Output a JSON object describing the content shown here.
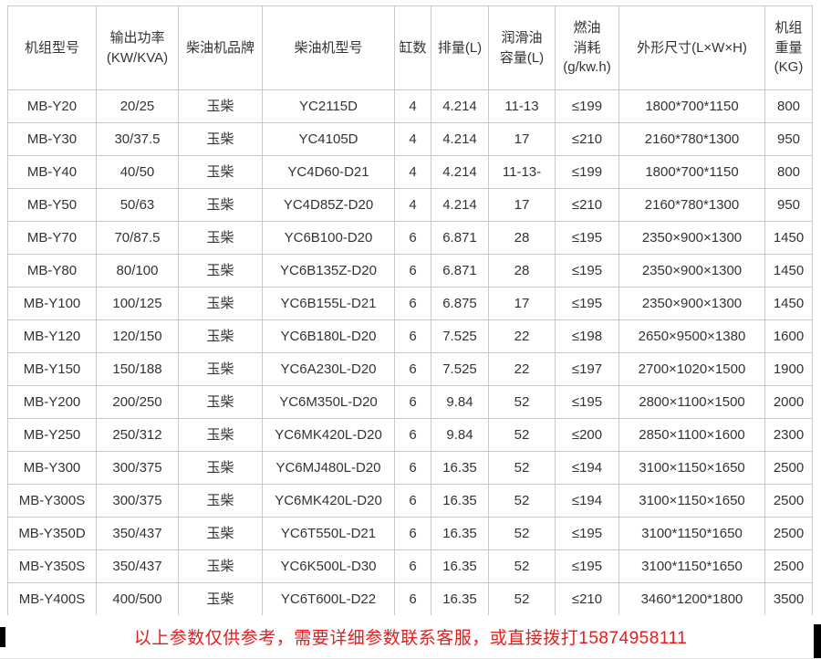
{
  "colors": {
    "border": "#c9c9c9",
    "cell_text": "#333333",
    "notice_red": "#e81c1c",
    "background": "#ffffff"
  },
  "table": {
    "headers": [
      "机组型号",
      "输出功率\n(KW/KVA)",
      "柴油机品牌",
      "柴油机型号",
      "缸数",
      "排量(L)",
      "润滑油\n容量(L)",
      "燃油\n消耗\n(g/kw.h)",
      "外形尺寸(L×W×H)",
      "机组\n重量\n(KG)"
    ],
    "rows": [
      [
        "MB-Y20",
        "20/25",
        "玉柴",
        "YC2115D",
        "4",
        "4.214",
        "11-13",
        "≤199",
        "1800*700*1150",
        "800"
      ],
      [
        "MB-Y30",
        "30/37.5",
        "玉柴",
        "YC4105D",
        "4",
        "4.214",
        "17",
        "≤210",
        "2160*780*1300",
        "950"
      ],
      [
        "MB-Y40",
        "40/50",
        "玉柴",
        "YC4D60-D21",
        "4",
        "4.214",
        "11-13-",
        "≤199",
        "1800*700*1150",
        "800"
      ],
      [
        "MB-Y50",
        "50/63",
        "玉柴",
        "YC4D85Z-D20",
        "4",
        "4.214",
        "17",
        "≤210",
        "2160*780*1300",
        "950"
      ],
      [
        "MB-Y70",
        "70/87.5",
        "玉柴",
        "YC6B100-D20",
        "6",
        "6.871",
        "28",
        "≤195",
        "2350×900×1300",
        "1450"
      ],
      [
        "MB-Y80",
        "80/100",
        "玉柴",
        "YC6B135Z-D20",
        "6",
        "6.871",
        "28",
        "≤195",
        "2350×900×1300",
        "1450"
      ],
      [
        "MB-Y100",
        "100/125",
        "玉柴",
        "YC6B155L-D21",
        "6",
        "6.875",
        "17",
        "≤195",
        "2350×900×1300",
        "1450"
      ],
      [
        "MB-Y120",
        "120/150",
        "玉柴",
        "YC6B180L-D20",
        "6",
        "7.525",
        "22",
        "≤198",
        "2650×9500×1380",
        "1600"
      ],
      [
        "MB-Y150",
        "150/188",
        "玉柴",
        "YC6A230L-D20",
        "6",
        "7.525",
        "22",
        "≤197",
        "2700×1020×1500",
        "1900"
      ],
      [
        "MB-Y200",
        "200/250",
        "玉柴",
        "YC6M350L-D20",
        "6",
        "9.84",
        "52",
        "≤195",
        "2800×1100×1500",
        "2000"
      ],
      [
        "MB-Y250",
        "250/312",
        "玉柴",
        "YC6MK420L-D20",
        "6",
        "9.84",
        "52",
        "≤200",
        "2850×1100×1600",
        "2300"
      ],
      [
        "MB-Y300",
        "300/375",
        "玉柴",
        "YC6MJ480L-D20",
        "6",
        "16.35",
        "52",
        "≤194",
        "3100×1150×1650",
        "2500"
      ],
      [
        "MB-Y300S",
        "300/375",
        "玉柴",
        "YC6MK420L-D20",
        "6",
        "16.35",
        "52",
        "≤194",
        "3100×1150×1650",
        "2500"
      ],
      [
        "MB-Y350D",
        "350/437",
        "玉柴",
        "YC6T550L-D21",
        "6",
        "16.35",
        "52",
        "≤195",
        "3100*1150*1650",
        "2500"
      ],
      [
        "MB-Y350S",
        "350/437",
        "玉柴",
        "YC6K500L-D30",
        "6",
        "16.35",
        "52",
        "≤195",
        "3100*1150*1650",
        "2500"
      ],
      [
        "MB-Y400S",
        "400/500",
        "玉柴",
        "YC6T600L-D22",
        "6",
        "16.35",
        "52",
        "≤210",
        "3460*1200*1800",
        "3500"
      ]
    ]
  },
  "chart_data": {
    "type": "table",
    "title": "",
    "columns": [
      "机组型号",
      "输出功率(KW/KVA)",
      "柴油机品牌",
      "柴油机型号",
      "缸数",
      "排量(L)",
      "润滑油容量(L)",
      "燃油消耗(g/kw.h)",
      "外形尺寸(L×W×H)",
      "机组重量(KG)"
    ],
    "rows_ref": "table.rows"
  },
  "footer": {
    "notice": "以上参数仅供参考，需要详细参数联系客服，或直接拨打15874958111"
  }
}
